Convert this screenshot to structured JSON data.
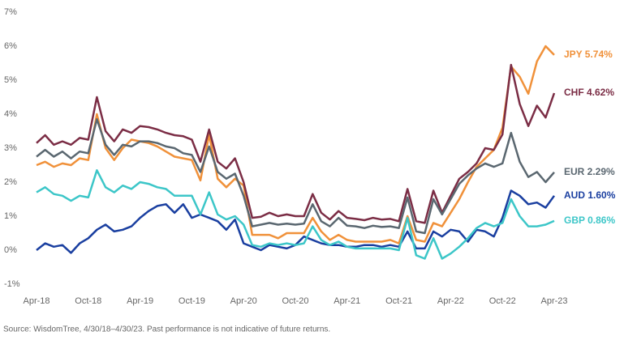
{
  "chart_data": {
    "type": "line",
    "categories": [
      "Apr-18",
      null,
      null,
      null,
      null,
      null,
      "Oct-18",
      null,
      null,
      null,
      null,
      null,
      "Apr-19",
      null,
      null,
      null,
      null,
      null,
      "Oct-19",
      null,
      null,
      null,
      null,
      null,
      "Apr-20",
      null,
      null,
      null,
      null,
      null,
      "Oct-20",
      null,
      null,
      null,
      null,
      null,
      "Apr-21",
      null,
      null,
      null,
      null,
      null,
      "Oct-21",
      null,
      null,
      null,
      null,
      null,
      "Apr-22",
      null,
      null,
      null,
      null,
      null,
      "Oct-22",
      null,
      null,
      null,
      null,
      null,
      "Apr-23"
    ],
    "series": [
      {
        "name": "JPY 5.74%",
        "color": "#f0913a",
        "values": [
          2.5,
          2.6,
          2.45,
          2.55,
          2.5,
          2.7,
          2.65,
          4.0,
          3.0,
          2.65,
          3.0,
          3.25,
          3.2,
          3.15,
          3.05,
          2.9,
          2.75,
          2.7,
          2.65,
          2.05,
          3.4,
          2.1,
          1.85,
          2.1,
          1.9,
          0.45,
          0.45,
          0.45,
          0.35,
          0.5,
          0.5,
          0.5,
          0.95,
          0.55,
          0.3,
          0.45,
          0.3,
          0.25,
          0.25,
          0.25,
          0.25,
          0.3,
          0.2,
          1.0,
          0.3,
          0.25,
          0.8,
          0.7,
          1.1,
          1.5,
          2.0,
          2.45,
          2.7,
          2.95,
          3.6,
          5.4,
          5.1,
          4.6,
          5.55,
          6.0,
          5.74
        ]
      },
      {
        "name": "CHF 4.62%",
        "color": "#7b2d45",
        "values": [
          3.15,
          3.38,
          3.1,
          3.2,
          3.1,
          3.3,
          3.25,
          4.5,
          3.5,
          3.2,
          3.55,
          3.45,
          3.65,
          3.62,
          3.55,
          3.45,
          3.38,
          3.35,
          3.25,
          2.6,
          3.55,
          2.6,
          2.4,
          2.7,
          2.0,
          0.95,
          0.98,
          1.1,
          1.0,
          1.05,
          1.0,
          1.0,
          1.65,
          1.1,
          0.9,
          1.15,
          0.95,
          0.92,
          0.88,
          0.95,
          0.9,
          0.92,
          0.85,
          1.8,
          0.85,
          0.8,
          1.75,
          1.1,
          1.6,
          2.1,
          2.3,
          2.55,
          3.0,
          2.95,
          3.4,
          5.45,
          4.3,
          3.65,
          4.25,
          3.9,
          4.62
        ]
      },
      {
        "name": "EUR 2.29%",
        "color": "#5a6770",
        "values": [
          2.75,
          2.95,
          2.75,
          2.9,
          2.7,
          2.9,
          2.85,
          3.85,
          3.1,
          2.8,
          3.1,
          3.05,
          3.2,
          3.2,
          3.15,
          3.05,
          3.0,
          2.85,
          2.8,
          2.3,
          3.05,
          2.3,
          2.1,
          2.25,
          1.6,
          0.7,
          0.75,
          0.8,
          0.75,
          0.78,
          0.75,
          0.78,
          1.35,
          0.85,
          0.7,
          0.95,
          0.72,
          0.7,
          0.65,
          0.72,
          0.68,
          0.7,
          0.65,
          1.55,
          0.55,
          0.5,
          1.5,
          1.05,
          1.5,
          1.95,
          2.2,
          2.4,
          2.55,
          2.45,
          2.55,
          3.45,
          2.6,
          2.15,
          2.3,
          2.0,
          2.29
        ]
      },
      {
        "name": "AUD 1.60%",
        "color": "#1a3fa0",
        "values": [
          0.0,
          0.2,
          0.1,
          0.15,
          -0.08,
          0.2,
          0.35,
          0.6,
          0.75,
          0.55,
          0.6,
          0.7,
          0.95,
          1.15,
          1.3,
          1.35,
          1.1,
          1.35,
          0.95,
          1.05,
          0.95,
          0.85,
          0.6,
          0.9,
          0.2,
          0.1,
          0.0,
          0.15,
          0.1,
          0.05,
          0.15,
          0.4,
          0.3,
          0.2,
          0.15,
          0.15,
          0.1,
          0.1,
          0.15,
          0.15,
          0.1,
          0.15,
          0.1,
          0.55,
          0.05,
          0.05,
          0.55,
          0.4,
          0.6,
          0.55,
          0.25,
          0.6,
          0.55,
          0.4,
          0.95,
          1.75,
          1.6,
          1.35,
          1.4,
          1.25,
          1.6
        ]
      },
      {
        "name": "GBP 0.86%",
        "color": "#3cc6c8",
        "values": [
          1.7,
          1.85,
          1.65,
          1.6,
          1.45,
          1.6,
          1.55,
          2.35,
          1.85,
          1.7,
          1.9,
          1.8,
          2.0,
          1.95,
          1.85,
          1.8,
          1.6,
          1.6,
          1.6,
          1.05,
          1.7,
          1.05,
          0.9,
          1.0,
          0.75,
          0.15,
          0.1,
          0.2,
          0.15,
          0.2,
          0.15,
          0.2,
          0.7,
          0.3,
          0.15,
          0.25,
          0.1,
          0.05,
          0.05,
          0.05,
          0.05,
          0.05,
          0.0,
          0.95,
          -0.15,
          -0.25,
          0.35,
          -0.25,
          -0.1,
          0.1,
          0.35,
          0.65,
          0.8,
          0.7,
          0.8,
          1.5,
          1.0,
          0.7,
          0.7,
          0.75,
          0.86
        ]
      }
    ],
    "ylim": [
      -1,
      7
    ],
    "yticks": [
      {
        "value": -1,
        "label": "-1%"
      },
      {
        "value": 0,
        "label": "0%"
      },
      {
        "value": 1,
        "label": "1%"
      },
      {
        "value": 2,
        "label": "2%"
      },
      {
        "value": 3,
        "label": "3%"
      },
      {
        "value": 4,
        "label": "4%"
      },
      {
        "value": 5,
        "label": "5%"
      },
      {
        "value": 6,
        "label": "6%"
      },
      {
        "value": 7,
        "label": "7%"
      }
    ],
    "grid": false,
    "source": "Source: WisdomTree, 4/30/18–4/30/23. Past performance is not indicative of future returns."
  }
}
